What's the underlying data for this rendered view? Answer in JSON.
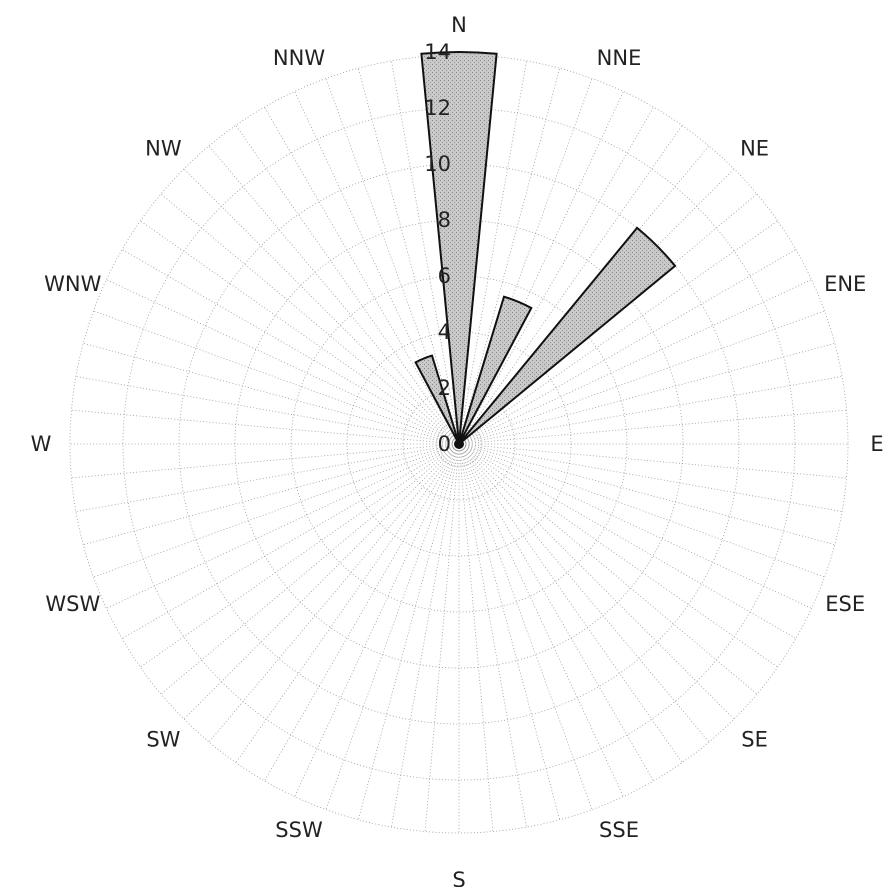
{
  "chart_data": {
    "type": "polar-bar",
    "directions": [
      "N",
      "NNE",
      "NE",
      "ENE",
      "E",
      "ESE",
      "SE",
      "SSE",
      "S",
      "SSW",
      "SW",
      "WSW",
      "W",
      "WNW",
      "NW",
      "NNW"
    ],
    "values": [
      14,
      5.5,
      10,
      0,
      0,
      0,
      0,
      0,
      0,
      0,
      0,
      0,
      0,
      0,
      0,
      3.3
    ],
    "radial_ticks": [
      0,
      2,
      4,
      6,
      8,
      10,
      12,
      14
    ],
    "rlim": [
      0,
      14
    ],
    "grid": true,
    "title": "",
    "colors": {
      "bar_fill": "#c4c4c4",
      "bar_stroke": "#111111",
      "grid": "#9a9a9a",
      "text": "#222222"
    }
  }
}
